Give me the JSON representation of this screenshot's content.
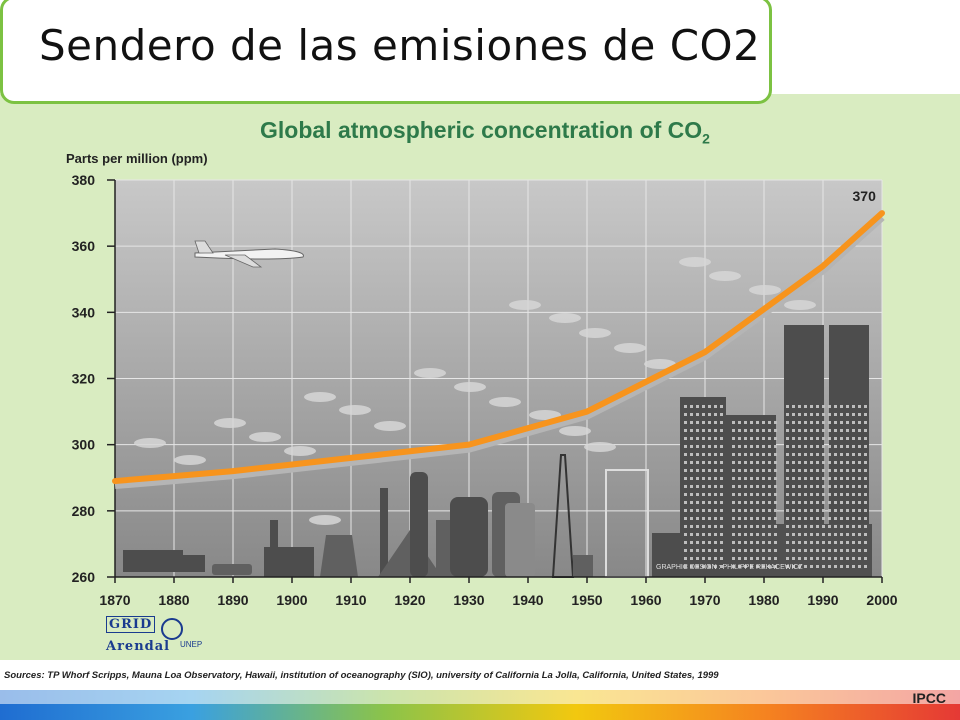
{
  "slide": {
    "title": "Sendero de las emisiones de CO2"
  },
  "chart_data": {
    "type": "line",
    "title": "Global atmospheric concentration of CO",
    "title_subscript": "2",
    "ylabel": "Parts per million (ppm)",
    "xlabel": "",
    "xlim": [
      1870,
      2000
    ],
    "ylim": [
      260,
      380
    ],
    "x_ticks": [
      1870,
      1880,
      1890,
      1900,
      1910,
      1920,
      1930,
      1940,
      1950,
      1960,
      1970,
      1980,
      1990,
      2000
    ],
    "y_ticks": [
      260,
      280,
      300,
      320,
      340,
      360,
      380
    ],
    "grid": true,
    "series": [
      {
        "color": "#f7941d",
        "x": [
          1870,
          1880,
          1890,
          1900,
          1910,
          1920,
          1930,
          1940,
          1950,
          1960,
          1970,
          1980,
          1990,
          2000
        ],
        "y": [
          289,
          290.5,
          292,
          294,
          296,
          298,
          300,
          305,
          310,
          319,
          328,
          341,
          354,
          370
        ]
      }
    ],
    "annotations": [
      {
        "text": "370",
        "x": 1998,
        "y": 370
      }
    ],
    "credit": "GRAPHIC DESIGN : PHILIPPE REKACEWICZ"
  },
  "logos": {
    "grid_top": "GRID",
    "grid_bottom": "Arendal",
    "unep": "UNEP"
  },
  "sources": "Sources: TP Whorf  Scripps, Mauna Loa Observatory, Hawaii, institution of oceanography (SIO), university of California La Jolla, California, United States, 1999",
  "footer": {
    "ipcc": "IPCC"
  },
  "colors": {
    "title_border": "#7cc242",
    "chart_title": "#2e7a4a",
    "line": "#f7941d",
    "band": "#d9ecc1"
  }
}
